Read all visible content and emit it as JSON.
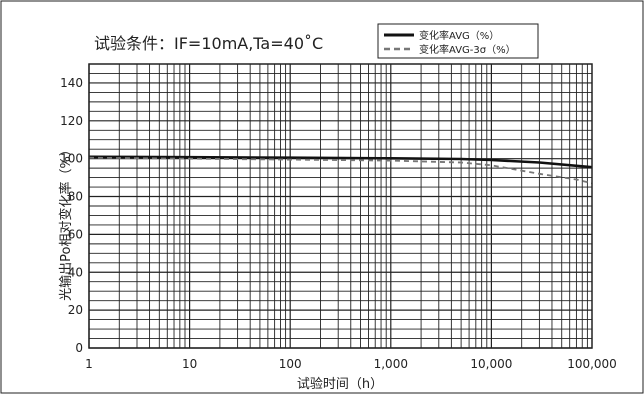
{
  "chart_data": {
    "type": "line",
    "title": "试验条件：IF=10mA,Ta=40˚C",
    "xlabel": "试验时间（h）",
    "ylabel": "光输出Po相对变化率（%）",
    "x_scale": "log",
    "xlim": [
      1,
      100000
    ],
    "ylim": [
      0,
      150
    ],
    "x_ticks": [
      {
        "value": 1,
        "label": "1"
      },
      {
        "value": 10,
        "label": "10"
      },
      {
        "value": 100,
        "label": "100"
      },
      {
        "value": 1000,
        "label": "1,000"
      },
      {
        "value": 10000,
        "label": "10,000"
      },
      {
        "value": 100000,
        "label": "100,000"
      }
    ],
    "y_ticks": [
      {
        "value": 0,
        "label": "0"
      },
      {
        "value": 20,
        "label": "20"
      },
      {
        "value": 40,
        "label": "40"
      },
      {
        "value": 60,
        "label": "60"
      },
      {
        "value": 80,
        "label": "80"
      },
      {
        "value": 100,
        "label": "100"
      },
      {
        "value": 120,
        "label": "120"
      },
      {
        "value": 140,
        "label": "140"
      }
    ],
    "grid": true,
    "legend_position": "top-right",
    "series": [
      {
        "name": "变化率AVG（%）",
        "style": "solid",
        "color": "#111111",
        "points": [
          [
            1,
            101
          ],
          [
            10,
            100.8
          ],
          [
            100,
            100.5
          ],
          [
            1000,
            100.2
          ],
          [
            5000,
            99.8
          ],
          [
            10000,
            99.3
          ],
          [
            30000,
            98
          ],
          [
            100000,
            95.5
          ]
        ]
      },
      {
        "name": "变化率AVG-3σ（%）",
        "style": "dashed",
        "color": "#777777",
        "points": [
          [
            1,
            100.5
          ],
          [
            10,
            100
          ],
          [
            100,
            99.5
          ],
          [
            1000,
            99
          ],
          [
            5000,
            98
          ],
          [
            10000,
            96.5
          ],
          [
            30000,
            92
          ],
          [
            70000,
            89
          ],
          [
            100000,
            87
          ]
        ]
      }
    ]
  }
}
